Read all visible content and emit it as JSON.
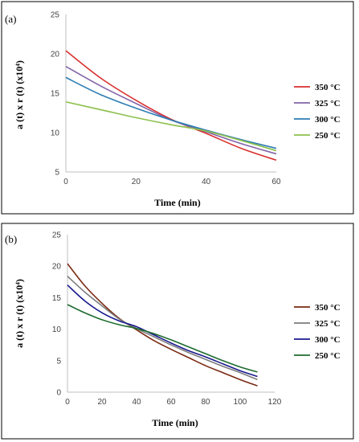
{
  "chart_data": [
    {
      "panel_label": "(a)",
      "type": "line",
      "xlabel": "Time (min)",
      "ylabel": "a (t) x r (t) (x10⁴)",
      "xlim": [
        0,
        60
      ],
      "ylim": [
        5,
        25
      ],
      "xticks": [
        "0",
        "20",
        "40",
        "60"
      ],
      "yticks": [
        "5",
        "10",
        "15",
        "20",
        "25"
      ],
      "grid": false,
      "legend_position": "right",
      "x": [
        0,
        10,
        20,
        30,
        40,
        50,
        60
      ],
      "series": [
        {
          "name": "350 °C",
          "color": "#d9312f",
          "values": [
            20.4,
            16.9,
            14.1,
            11.7,
            9.9,
            8.0,
            6.5
          ]
        },
        {
          "name": "325 °C",
          "color": "#8264a8",
          "values": [
            18.4,
            15.9,
            13.7,
            11.6,
            10.1,
            8.6,
            7.3
          ]
        },
        {
          "name": "300 °C",
          "color": "#2d7db3",
          "values": [
            17.0,
            14.8,
            13.1,
            11.6,
            10.3,
            9.1,
            8.0
          ]
        },
        {
          "name": "250 °C",
          "color": "#8cc04c",
          "values": [
            13.9,
            12.9,
            11.9,
            11.0,
            10.2,
            9.0,
            7.7
          ]
        }
      ]
    },
    {
      "panel_label": "(b)",
      "type": "line",
      "xlabel": "Time (min)",
      "ylabel": "a (t) x r (t) (x10⁴)",
      "xlim": [
        0,
        120
      ],
      "ylim": [
        0,
        25
      ],
      "xticks": [
        "0",
        "20",
        "40",
        "60",
        "80",
        "100",
        "120"
      ],
      "yticks": [
        "0",
        "5",
        "10",
        "15",
        "20",
        "25"
      ],
      "grid": false,
      "legend_position": "right",
      "x": [
        0,
        10,
        20,
        30,
        40,
        50,
        60,
        70,
        80,
        90,
        100,
        110
      ],
      "series": [
        {
          "name": "350 °C",
          "color": "#7a2a12",
          "values": [
            20.4,
            16.9,
            14.1,
            11.7,
            9.9,
            8.2,
            6.8,
            5.5,
            4.2,
            3.1,
            2.0,
            1.0
          ]
        },
        {
          "name": "325 °C",
          "color": "#7d7d7d",
          "values": [
            18.4,
            15.9,
            13.7,
            11.6,
            10.1,
            8.8,
            7.5,
            6.3,
            5.2,
            4.1,
            3.1,
            2.0
          ]
        },
        {
          "name": "300 °C",
          "color": "#1a1a8f",
          "values": [
            17.0,
            14.5,
            12.6,
            11.3,
            10.4,
            9.1,
            7.8,
            6.6,
            5.6,
            4.5,
            3.4,
            2.5
          ]
        },
        {
          "name": "250 °C",
          "color": "#1e6b2e",
          "values": [
            13.9,
            12.6,
            11.5,
            10.7,
            10.1,
            9.3,
            8.3,
            7.2,
            6.1,
            5.0,
            4.0,
            3.2
          ]
        }
      ]
    }
  ]
}
